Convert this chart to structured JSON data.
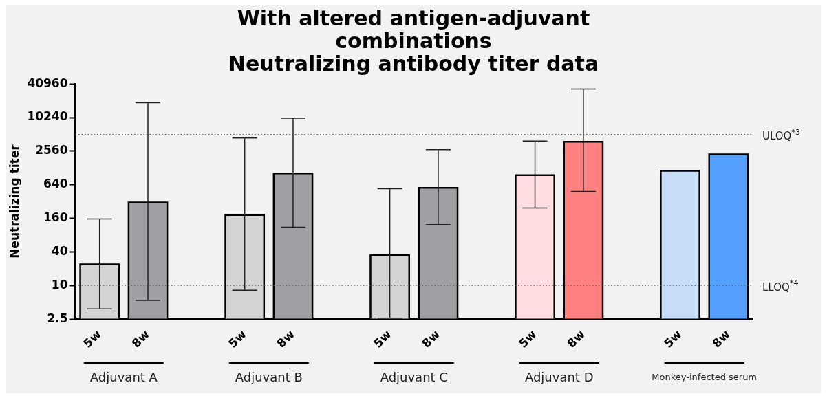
{
  "chart_data": {
    "type": "bar",
    "title": "With altered antigen-adjuvant combinations",
    "subtitle": "Neutralizing antibody titer data",
    "ylabel": "Neutralizing titer",
    "categories": [
      "5w",
      "8w",
      null,
      "5w",
      "8w",
      null,
      "5w",
      "8w",
      null,
      "5w",
      "8w",
      null,
      "5w",
      "8w"
    ],
    "values": [
      24,
      307,
      null,
      183,
      1025,
      null,
      35,
      561,
      null,
      950,
      3770,
      null,
      1140,
      2240
    ],
    "colors": [
      "#d4d4d4",
      "#a09fa4",
      null,
      "#d4d4d4",
      "#a09fa4",
      null,
      "#d4d4d4",
      "#a09fa4",
      null,
      "#ffdde0",
      "#ff8080",
      null,
      "#c8ddf7",
      "#55a0fc"
    ],
    "errors": [
      [
        3.8,
        156
      ],
      [
        5.4,
        18900
      ],
      null,
      [
        8.2,
        4420
      ],
      [
        111,
        10000
      ],
      null,
      [
        2.6,
        542
      ],
      [
        123,
        2720
      ],
      null,
      [
        246,
        3880
      ],
      [
        485,
        33300
      ],
      null,
      null,
      null
    ],
    "log": "y",
    "ylim": [
      2.5,
      40960
    ],
    "yticks": [
      2.5,
      10,
      40,
      160,
      640,
      2560,
      10240,
      40960
    ],
    "grid": false,
    "legend": false,
    "ref_lines": [
      {
        "axis": "y",
        "value": 5120,
        "label": "ULOQ$^{*3}$",
        "color": "#555555",
        "line_style": "dotted"
      },
      {
        "axis": "y",
        "value": 10,
        "label": "LLOQ$^{*4}$",
        "color": "#555555",
        "line_style": "dotted"
      }
    ],
    "annotations": [
      "Adjuvant A",
      "Adjuvant B",
      "Adjuvant C",
      "Adjuvant D",
      "Monkey-infected serum"
    ]
  }
}
